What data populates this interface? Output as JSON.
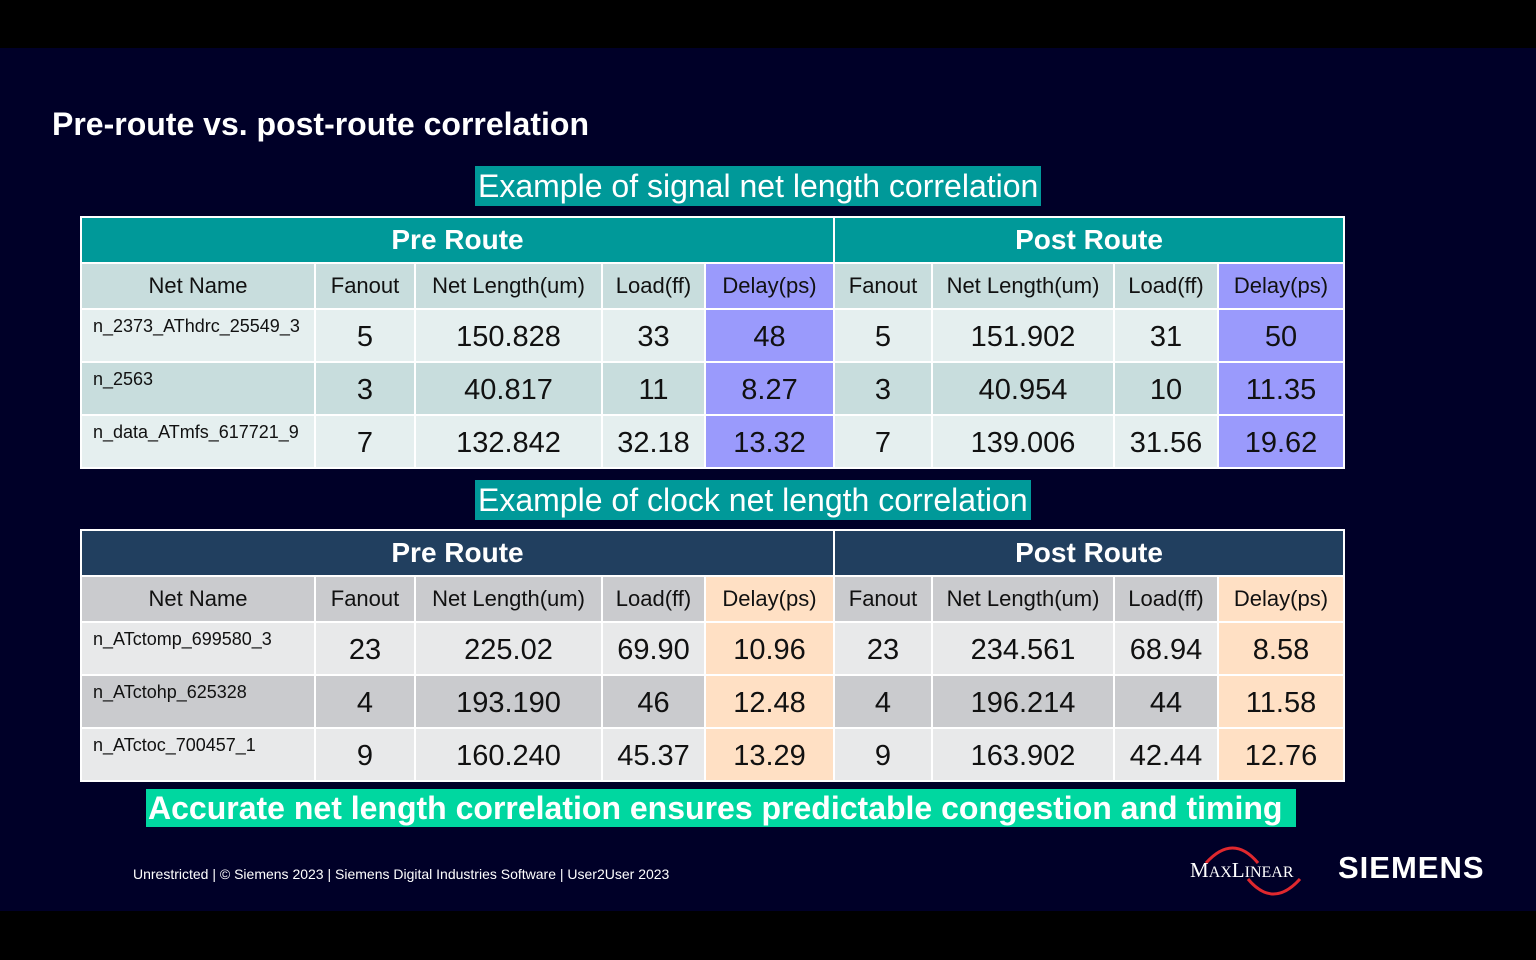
{
  "title": "Pre-route vs. post-route correlation",
  "signal": {
    "caption": "Example of signal net length correlation",
    "groups": [
      "Pre Route",
      "Post Route"
    ],
    "headers": [
      "Net Name",
      "Fanout",
      "Net Length(um)",
      "Load(ff)",
      "Delay(ps)",
      "Fanout",
      "Net Length(um)",
      "Load(ff)",
      "Delay(ps)"
    ],
    "rows": [
      [
        "n_2373_AThdrc_25549_3",
        "5",
        "150.828",
        "33",
        "48",
        "5",
        "151.902",
        "31",
        "50"
      ],
      [
        "n_2563",
        "3",
        "40.817",
        "11",
        "8.27",
        "3",
        "40.954",
        "10",
        "11.35"
      ],
      [
        "n_data_ATmfs_617721_9",
        "7",
        "132.842",
        "32.18",
        "13.32",
        "7",
        "139.006",
        "31.56",
        "19.62"
      ]
    ],
    "colors": {
      "header": "#009999",
      "delay": "#9a9afc"
    }
  },
  "clock": {
    "caption": "Example of clock net length correlation",
    "groups": [
      "Pre Route",
      "Post Route"
    ],
    "headers": [
      "Net Name",
      "Fanout",
      "Net Length(um)",
      "Load(ff)",
      "Delay(ps)",
      "Fanout",
      "Net Length(um)",
      "Load(ff)",
      "Delay(ps)"
    ],
    "rows": [
      [
        "n_ATctomp_699580_3",
        "23",
        "225.02",
        "69.90",
        "10.96",
        "23",
        "234.561",
        "68.94",
        "8.58"
      ],
      [
        "n_ATctohp_625328",
        "4",
        "193.190",
        "46",
        "12.48",
        "4",
        "196.214",
        "44",
        "11.58"
      ],
      [
        "n_ATctoc_700457_1",
        "9",
        "160.240",
        "45.37",
        "13.29",
        "9",
        "163.902",
        "42.44",
        "12.76"
      ]
    ],
    "colors": {
      "header": "#213f5f",
      "delay": "#ffe0c4"
    }
  },
  "conclusion": "Accurate net length correlation ensures predictable congestion and timing",
  "footer": "Unrestricted | © Siemens 2023 | Siemens Digital Industries Software | User2User 2023",
  "logos": {
    "maxlinear": "MaxLinear",
    "siemens": "SIEMENS"
  }
}
